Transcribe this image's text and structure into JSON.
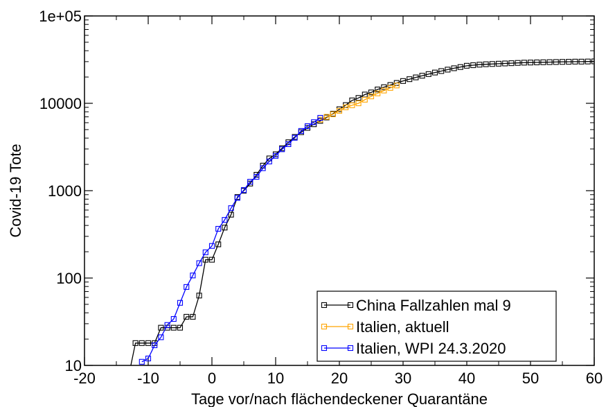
{
  "chart_data": {
    "type": "line",
    "xlabel": "Tage vor/nach flächendeckener Quarantäne",
    "ylabel": "Covid-19 Tote",
    "xlim": [
      -20,
      60
    ],
    "ylim": [
      10,
      100000
    ],
    "y_scale": "log",
    "x_ticks": [
      "-20",
      "-10",
      "0",
      "10",
      "20",
      "30",
      "40",
      "50",
      "60"
    ],
    "y_ticks": [
      "10",
      "100",
      "1000",
      "10000",
      "1e+05"
    ],
    "grid": false,
    "legend_position": "bottom-right",
    "marker": "square",
    "series": [
      {
        "name": "China Fallzahlen mal 9",
        "color": "#000000",
        "x": [
          -13,
          -12,
          -11,
          -10,
          -9,
          -8,
          -7,
          -6,
          -5,
          -4,
          -3,
          -2,
          -1,
          0,
          1,
          2,
          3,
          4,
          5,
          6,
          7,
          8,
          9,
          10,
          11,
          12,
          13,
          14,
          15,
          16,
          17,
          18,
          19,
          20,
          21,
          22,
          23,
          24,
          25,
          26,
          27,
          28,
          29,
          30,
          31,
          32,
          33,
          34,
          35,
          36,
          37,
          38,
          39,
          40,
          41,
          42,
          43,
          44,
          45,
          46,
          47,
          48,
          49,
          50,
          51,
          52,
          53,
          54,
          55,
          56,
          57,
          58,
          59,
          60
        ],
        "y": [
          8,
          18,
          18,
          18,
          18,
          27,
          27,
          27,
          27,
          36,
          36,
          63,
          162,
          162,
          243,
          378,
          531,
          846,
          999,
          1206,
          1521,
          1935,
          2340,
          2610,
          3060,
          3582,
          4122,
          4671,
          5238,
          5760,
          6300,
          6885,
          7605,
          8550,
          9540,
          10800,
          11520,
          12600,
          13320,
          14400,
          15300,
          16200,
          17100,
          18000,
          18900,
          19800,
          20700,
          21600,
          22500,
          23400,
          24300,
          25200,
          26000,
          26900,
          27300,
          27700,
          28000,
          28200,
          28400,
          28600,
          28800,
          29000,
          29200,
          29300,
          29400,
          29500,
          29600,
          29700,
          29800,
          29900,
          30000,
          30000,
          30100,
          30200
        ]
      },
      {
        "name": "Italien, aktuell",
        "color": "#ffa500",
        "x": [
          17,
          18,
          19,
          20,
          21,
          22,
          23,
          24,
          25,
          26,
          27,
          28,
          29
        ],
        "y": [
          6500,
          7000,
          7500,
          8200,
          9000,
          9500,
          10000,
          11000,
          12000,
          13000,
          14000,
          15000,
          16000
        ]
      },
      {
        "name": "Italien, WPI 24.3.2020",
        "color": "#0000ff",
        "x": [
          -11,
          -10,
          -9,
          -8,
          -7,
          -6,
          -5,
          -4,
          -3,
          -2,
          -1,
          0,
          1,
          2,
          3,
          4,
          5,
          6,
          7,
          8,
          9,
          10,
          11,
          12,
          13,
          14,
          15,
          16,
          17
        ],
        "y": [
          11,
          12,
          17,
          21,
          29,
          34,
          52,
          79,
          107,
          148,
          197,
          233,
          366,
          463,
          631,
          827,
          1016,
          1266,
          1441,
          1809,
          2158,
          2503,
          2978,
          3405,
          4032,
          4825,
          5476,
          6077,
          6820
        ]
      }
    ]
  }
}
